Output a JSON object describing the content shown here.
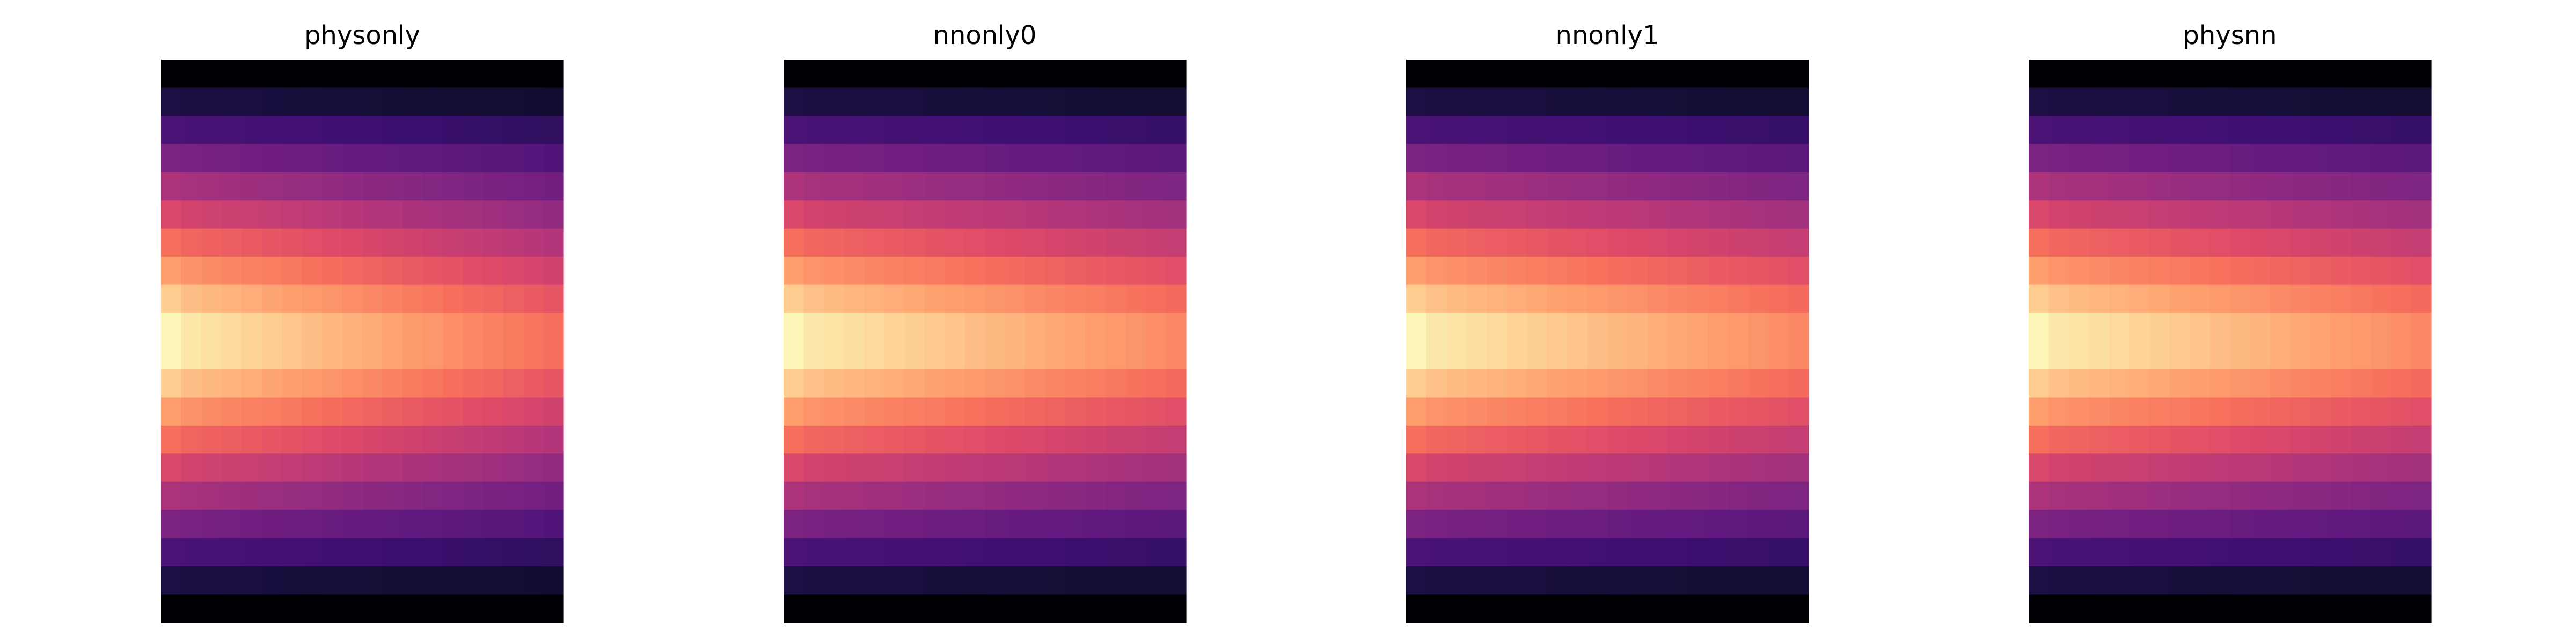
{
  "chart_data": [
    {
      "type": "heatmap",
      "title": "physonly",
      "colormap": "magma",
      "rows": 20,
      "cols": 20,
      "axis": "off"
    },
    {
      "type": "heatmap",
      "title": "nnonly0",
      "colormap": "magma",
      "rows": 20,
      "cols": 20,
      "axis": "off"
    },
    {
      "type": "heatmap",
      "title": "nnonly1",
      "colormap": "magma",
      "rows": 20,
      "cols": 20,
      "axis": "off"
    },
    {
      "type": "heatmap",
      "title": "physnn",
      "colormap": "magma",
      "rows": 20,
      "cols": 20,
      "axis": "off"
    }
  ],
  "colormap_stops": [
    "#000004",
    "#140e36",
    "#3b0f70",
    "#641a80",
    "#8c2981",
    "#b73779",
    "#de4968",
    "#f7705c",
    "#fe9f6d",
    "#fecf92",
    "#fcfdbf"
  ]
}
